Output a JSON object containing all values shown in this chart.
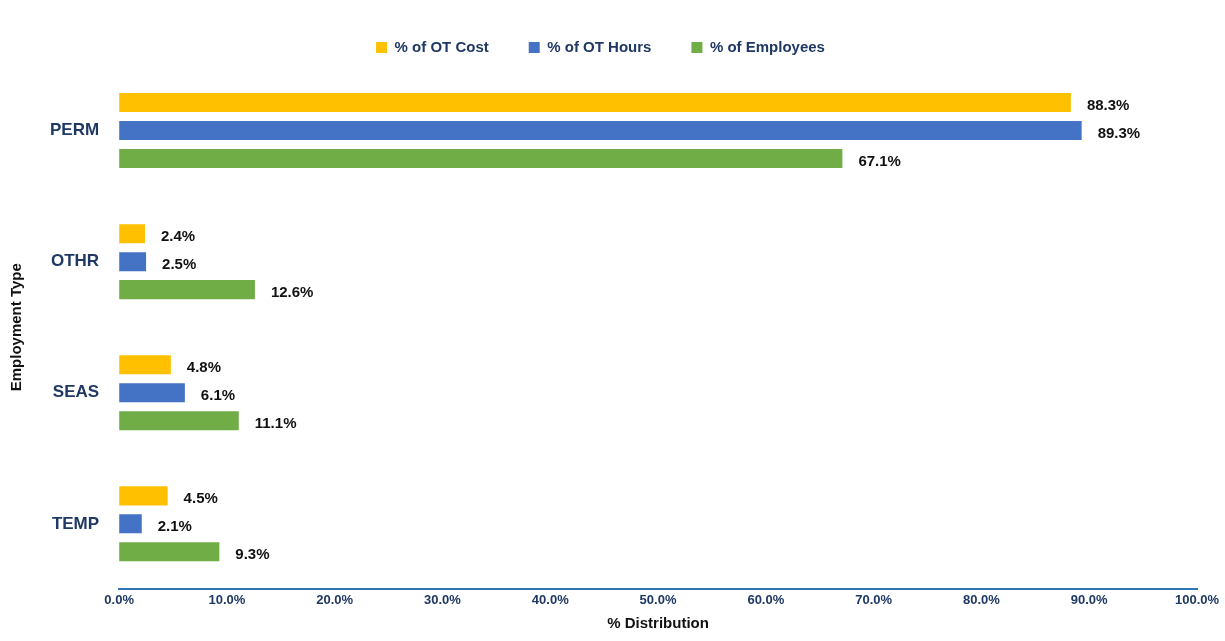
{
  "chart_data": {
    "type": "bar",
    "orientation": "horizontal",
    "ylabel": "Employment Type",
    "xlabel": "% Distribution",
    "categories": [
      "PERM",
      "OTHR",
      "SEAS",
      "TEMP"
    ],
    "series": [
      {
        "name": "% of OT Cost",
        "color": "#ffc000",
        "values": [
          88.3,
          2.4,
          4.8,
          4.5
        ],
        "value_labels": [
          "88.3%",
          "2.4%",
          "4.8%",
          "4.5%"
        ]
      },
      {
        "name": "% of OT Hours",
        "color": "#4472c4",
        "values": [
          89.3,
          2.5,
          6.1,
          2.1
        ],
        "value_labels": [
          "89.3%",
          "2.5%",
          "6.1%",
          "2.1%"
        ]
      },
      {
        "name": "% of Employees",
        "color": "#70ad47",
        "values": [
          67.1,
          12.6,
          11.1,
          9.3
        ],
        "value_labels": [
          "67.1%",
          "12.6%",
          "11.1%",
          "9.3%"
        ]
      }
    ],
    "xlim": [
      0,
      100
    ],
    "xticks": [
      {
        "value": 0,
        "label": "0.0%"
      },
      {
        "value": 10,
        "label": "10.0%"
      },
      {
        "value": 20,
        "label": "20.0%"
      },
      {
        "value": 30,
        "label": "30.0%"
      },
      {
        "value": 40,
        "label": "40.0%"
      },
      {
        "value": 50,
        "label": "50.0%"
      },
      {
        "value": 60,
        "label": "60.0%"
      },
      {
        "value": 70,
        "label": "70.0%"
      },
      {
        "value": 80,
        "label": "80.0%"
      },
      {
        "value": 90,
        "label": "90.0%"
      },
      {
        "value": 100,
        "label": "100.0%"
      }
    ],
    "grid": false,
    "legend": "top"
  }
}
